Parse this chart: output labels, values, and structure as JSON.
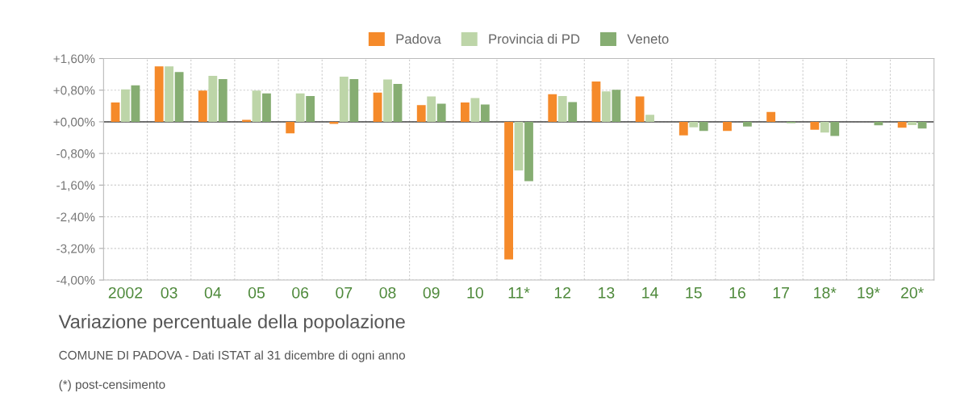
{
  "chart_data": {
    "type": "bar",
    "title": "Variazione percentuale della popolazione",
    "annotations": [
      "COMUNE DI PADOVA - Dati ISTAT al 31 dicembre di ogni anno",
      "(*) post-censimento"
    ],
    "categories": [
      "2002",
      "03",
      "04",
      "05",
      "06",
      "07",
      "08",
      "09",
      "10",
      "11*",
      "12",
      "13",
      "14",
      "15",
      "16",
      "17",
      "18*",
      "19*",
      "20*"
    ],
    "series": [
      {
        "name": "Padova",
        "color": "#f58a2a",
        "values": [
          0.49,
          1.4,
          0.79,
          0.05,
          -0.29,
          -0.05,
          0.74,
          0.42,
          0.49,
          -3.48,
          0.7,
          1.02,
          0.64,
          -0.34,
          -0.23,
          0.25,
          -0.2,
          0.0,
          -0.15
        ]
      },
      {
        "name": "Provincia di PD",
        "color": "#bdd5a8",
        "values": [
          0.82,
          1.4,
          1.16,
          0.79,
          0.72,
          1.14,
          1.07,
          0.64,
          0.6,
          -1.23,
          0.65,
          0.77,
          0.18,
          -0.14,
          0.0,
          0.0,
          -0.27,
          0.0,
          -0.08
        ]
      },
      {
        "name": "Veneto",
        "color": "#86ad72",
        "values": [
          0.92,
          1.26,
          1.08,
          0.72,
          0.65,
          1.08,
          0.96,
          0.46,
          0.44,
          -1.5,
          0.5,
          0.81,
          0.0,
          -0.23,
          -0.12,
          -0.03,
          -0.36,
          -0.09,
          -0.17
        ]
      }
    ],
    "ylim": [
      -4.0,
      1.6
    ],
    "yticks": [
      {
        "value": 1.6,
        "label": "+1,60%"
      },
      {
        "value": 0.8,
        "label": "+0,80%"
      },
      {
        "value": 0.0,
        "label": "+0,00%"
      },
      {
        "value": -0.8,
        "label": "-0,80%"
      },
      {
        "value": -1.6,
        "label": "-1,60%"
      },
      {
        "value": -2.4,
        "label": "-2,40%"
      },
      {
        "value": -3.2,
        "label": "-3,20%"
      },
      {
        "value": -4.0,
        "label": "-4,00%"
      }
    ],
    "ref_lines": [
      {
        "axis": "y",
        "value": 0,
        "color": "#444444"
      }
    ],
    "grid": true,
    "legend": "top"
  }
}
